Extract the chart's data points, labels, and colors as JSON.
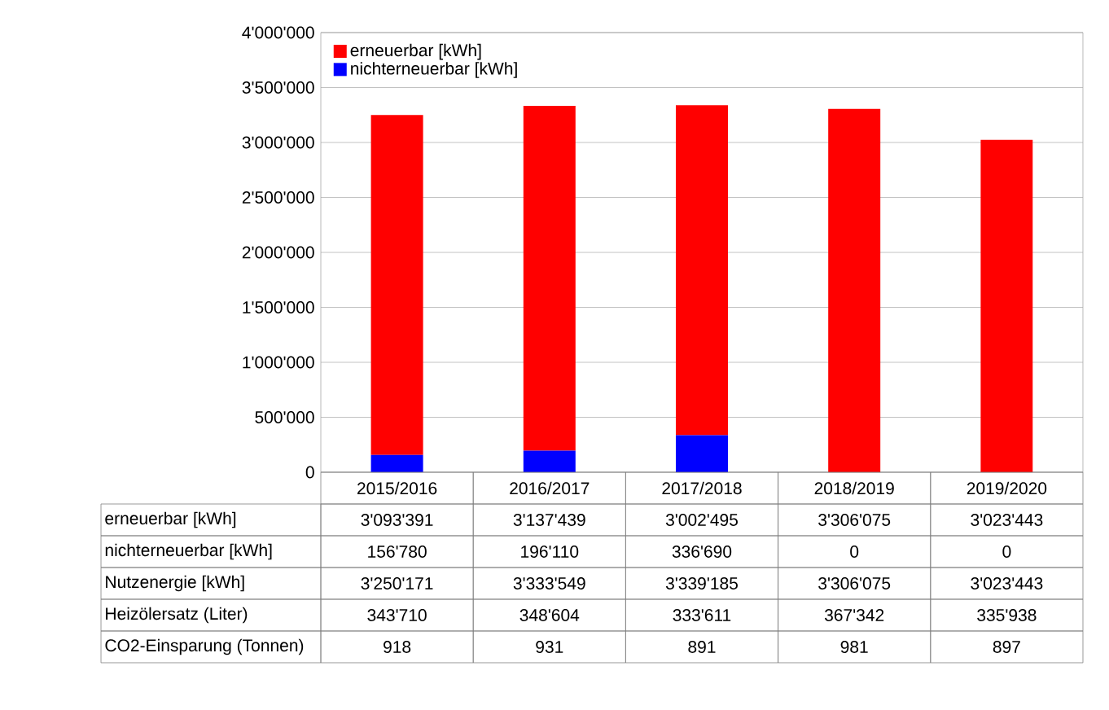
{
  "chart_data": {
    "type": "bar",
    "stacked": true,
    "categories": [
      "2015/2016",
      "2016/2017",
      "2017/2018",
      "2018/2019",
      "2019/2020"
    ],
    "series": [
      {
        "name": "nichterneuerbar [kWh]",
        "color": "#0000ff",
        "values": [
          156780,
          196110,
          336690,
          0,
          0
        ],
        "value_labels": [
          "156'780",
          "196'110",
          "336'690",
          "0",
          "0"
        ]
      },
      {
        "name": "erneuerbar [kWh]",
        "color": "#ff0000",
        "values": [
          3093391,
          3137439,
          3002495,
          3306075,
          3023443
        ],
        "value_labels": [
          "3'093'391",
          "3'137'439",
          "3'002'495",
          "3'306'075",
          "3'023'443"
        ]
      }
    ],
    "annotations": [
      "Nutzenergie [kWh]",
      "3'250'171",
      "3'333'549",
      "3'339'185",
      "3'306'075",
      "3'023'443",
      "Heizölersatz (Liter)",
      "343'710",
      "348'604",
      "333'611",
      "367'342",
      "335'938",
      "CO2-Einsparung (Tonnen)",
      "918",
      "931",
      "891",
      "981",
      "897"
    ],
    "ylim": [
      0,
      4000000
    ],
    "yticks": [
      {
        "value": 0,
        "label": "0"
      },
      {
        "value": 500000,
        "label": "500'000"
      },
      {
        "value": 1000000,
        "label": "1'000'000"
      },
      {
        "value": 1500000,
        "label": "1'500'000"
      },
      {
        "value": 2000000,
        "label": "2'000'000"
      },
      {
        "value": 2500000,
        "label": "2'500'000"
      },
      {
        "value": 3000000,
        "label": "3'000'000"
      },
      {
        "value": 3500000,
        "label": "3'500'000"
      },
      {
        "value": 4000000,
        "label": "4'000'000"
      }
    ],
    "grid": "y",
    "legend": "top left"
  }
}
